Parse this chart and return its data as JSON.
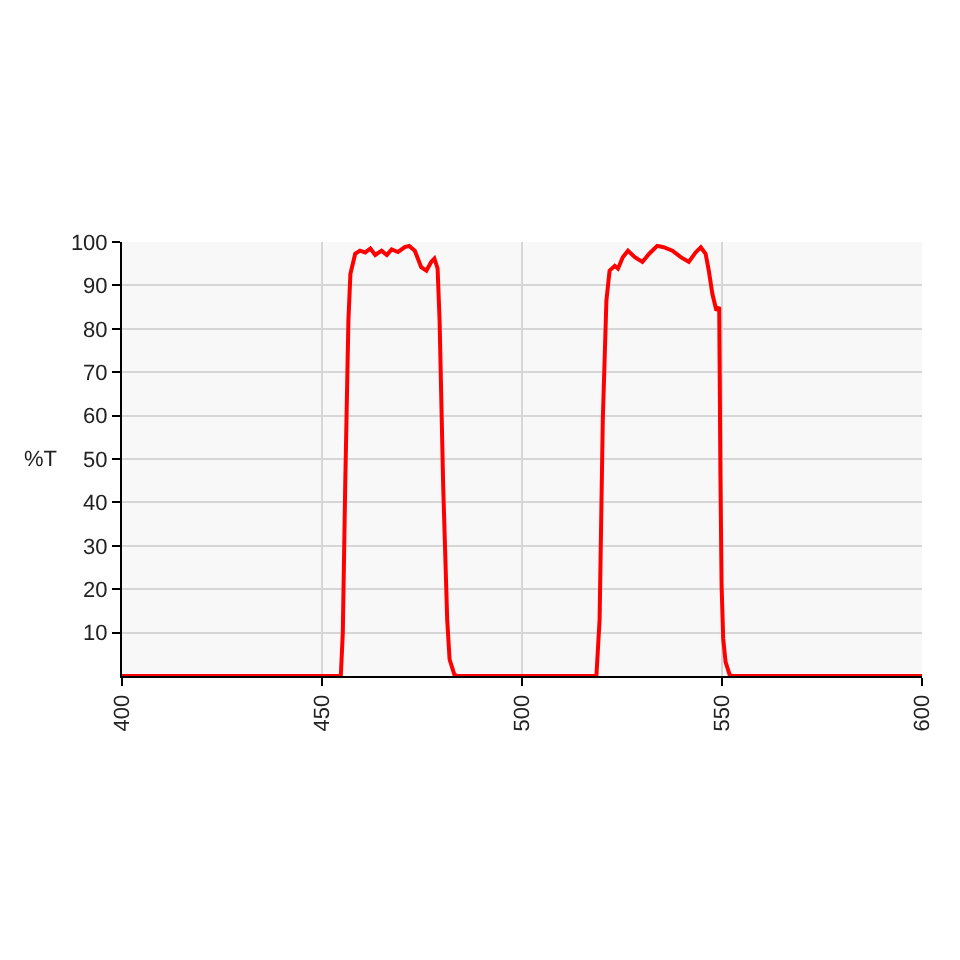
{
  "chart_data": {
    "type": "line",
    "ylabel": "%T",
    "xlim": [
      400,
      600
    ],
    "ylim": [
      0,
      100
    ],
    "xticks": [
      400,
      450,
      500,
      550,
      600
    ],
    "yticks": [
      10,
      20,
      30,
      40,
      50,
      60,
      70,
      80,
      90,
      100
    ],
    "grid": true,
    "line_style": "solid",
    "series": [
      {
        "color": "#ff0000",
        "x": [
          400,
          454.7,
          455.2,
          455.8,
          456.6,
          457.1,
          458.3,
          459.5,
          460.8,
          462.1,
          463.3,
          464.9,
          466.2,
          467.4,
          469.0,
          470.7,
          471.8,
          473.2,
          474.8,
          476.1,
          477.3,
          478.1,
          478.9,
          479.4,
          480.3,
          481.3,
          481.9,
          483.1,
          483.9,
          518.6,
          519.4,
          520.2,
          521.1,
          521.9,
          523.2,
          524.0,
          525.2,
          526.5,
          528.2,
          530.1,
          531.8,
          533.8,
          535.4,
          537.6,
          539.7,
          541.7,
          543.4,
          544.7,
          545.9,
          546.7,
          547.6,
          548.6,
          549.3,
          549.4,
          549.6,
          549.9,
          550.3,
          550.9,
          551.9,
          552.5,
          600
        ],
        "values": [
          0,
          0,
          9.9,
          43.7,
          81.9,
          92.6,
          97.3,
          98.0,
          97.6,
          98.5,
          97.0,
          98.0,
          97.0,
          98.3,
          97.7,
          98.8,
          99.1,
          98.0,
          94.2,
          93.4,
          95.4,
          96.2,
          93.9,
          81.9,
          43.7,
          13.0,
          3.8,
          0.3,
          0,
          0,
          13.0,
          59.0,
          86.5,
          93.4,
          94.5,
          93.9,
          96.5,
          98.0,
          96.5,
          95.4,
          97.3,
          99.1,
          98.8,
          98.0,
          96.5,
          95.4,
          97.6,
          98.8,
          97.3,
          93.4,
          88.0,
          84.2,
          85.0,
          72.8,
          46.8,
          20.8,
          8.6,
          3.2,
          0.3,
          0,
          0
        ]
      }
    ]
  }
}
